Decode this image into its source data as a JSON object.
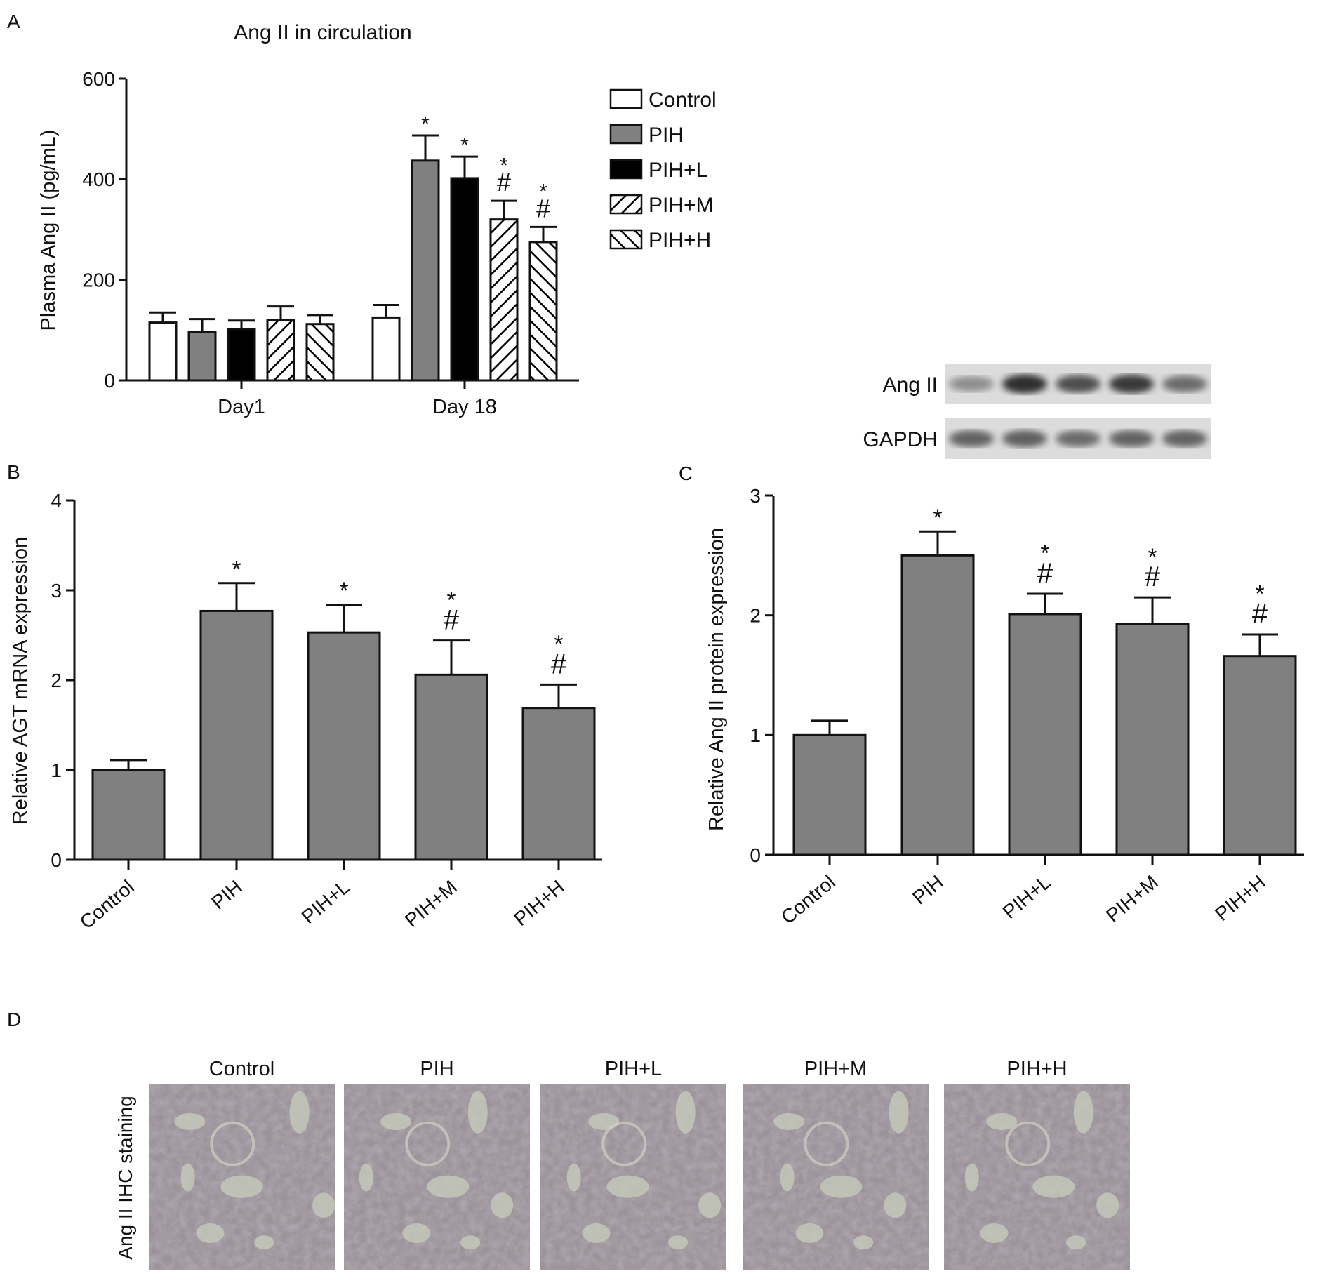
{
  "panel_labels": [
    "A",
    "B",
    "C",
    "D"
  ],
  "colors": {
    "control": "#ffffff",
    "pih": "#808080",
    "pih_l": "#000000",
    "bar_gray": "#808080",
    "axis": "#111111"
  },
  "chart_data": [
    {
      "id": "A",
      "type": "bar",
      "title": "Ang II in circulation",
      "ylabel": "Plasma Ang II (pg/mL)",
      "xlabel": "",
      "ylim": [
        0,
        600
      ],
      "yticks": [
        0,
        200,
        400,
        600
      ],
      "categories": [
        "Day1",
        "Day 18"
      ],
      "legend_position": "right",
      "series": [
        {
          "name": "Control",
          "pattern": "white",
          "values": [
            115,
            125
          ],
          "errors": [
            20,
            25
          ],
          "marks": [
            "",
            ""
          ]
        },
        {
          "name": "PIH",
          "pattern": "gray",
          "values": [
            97,
            437
          ],
          "errors": [
            25,
            50
          ],
          "marks": [
            "",
            "*"
          ]
        },
        {
          "name": "PIH+L",
          "pattern": "black",
          "values": [
            102,
            402
          ],
          "errors": [
            17,
            43
          ],
          "marks": [
            "",
            "*"
          ]
        },
        {
          "name": "PIH+M",
          "pattern": "diag-up",
          "values": [
            120,
            320
          ],
          "errors": [
            27,
            37
          ],
          "marks": [
            "",
            "*#"
          ]
        },
        {
          "name": "PIH+H",
          "pattern": "diag-down",
          "values": [
            112,
            275
          ],
          "errors": [
            18,
            30
          ],
          "marks": [
            "",
            "*#"
          ]
        }
      ]
    },
    {
      "id": "B",
      "type": "bar",
      "title": "",
      "ylabel": "Relative AGT mRNA expression",
      "xlabel": "",
      "ylim": [
        0,
        4
      ],
      "yticks": [
        0,
        1,
        2,
        3,
        4
      ],
      "categories": [
        "Control",
        "PIH",
        "PIH+L",
        "PIH+M",
        "PIH+H"
      ],
      "values": [
        1.0,
        2.77,
        2.53,
        2.06,
        1.69
      ],
      "errors": [
        0.11,
        0.31,
        0.31,
        0.38,
        0.26
      ],
      "marks": [
        "",
        "*",
        "*",
        "*#",
        "*#"
      ]
    },
    {
      "id": "C",
      "type": "bar",
      "title": "",
      "ylabel": "Relative Ang II protein expression",
      "xlabel": "",
      "ylim": [
        0,
        3
      ],
      "yticks": [
        0,
        1,
        2,
        3
      ],
      "categories": [
        "Control",
        "PIH",
        "PIH+L",
        "PIH+M",
        "PIH+H"
      ],
      "values": [
        1.0,
        2.5,
        2.01,
        1.93,
        1.66
      ],
      "errors": [
        0.12,
        0.2,
        0.17,
        0.22,
        0.18
      ],
      "marks": [
        "",
        "*",
        "*#",
        "*#",
        "*#"
      ]
    }
  ],
  "western_blot": {
    "bands": [
      {
        "label": "Ang II",
        "intensities": [
          0.35,
          0.9,
          0.72,
          0.85,
          0.55
        ]
      },
      {
        "label": "GAPDH",
        "intensities": [
          0.6,
          0.62,
          0.55,
          0.6,
          0.6
        ]
      }
    ]
  },
  "ihc": {
    "row_label": "Ang II IHC staining",
    "groups": [
      "Control",
      "PIH",
      "PIH+L",
      "PIH+M",
      "PIH+H"
    ]
  }
}
